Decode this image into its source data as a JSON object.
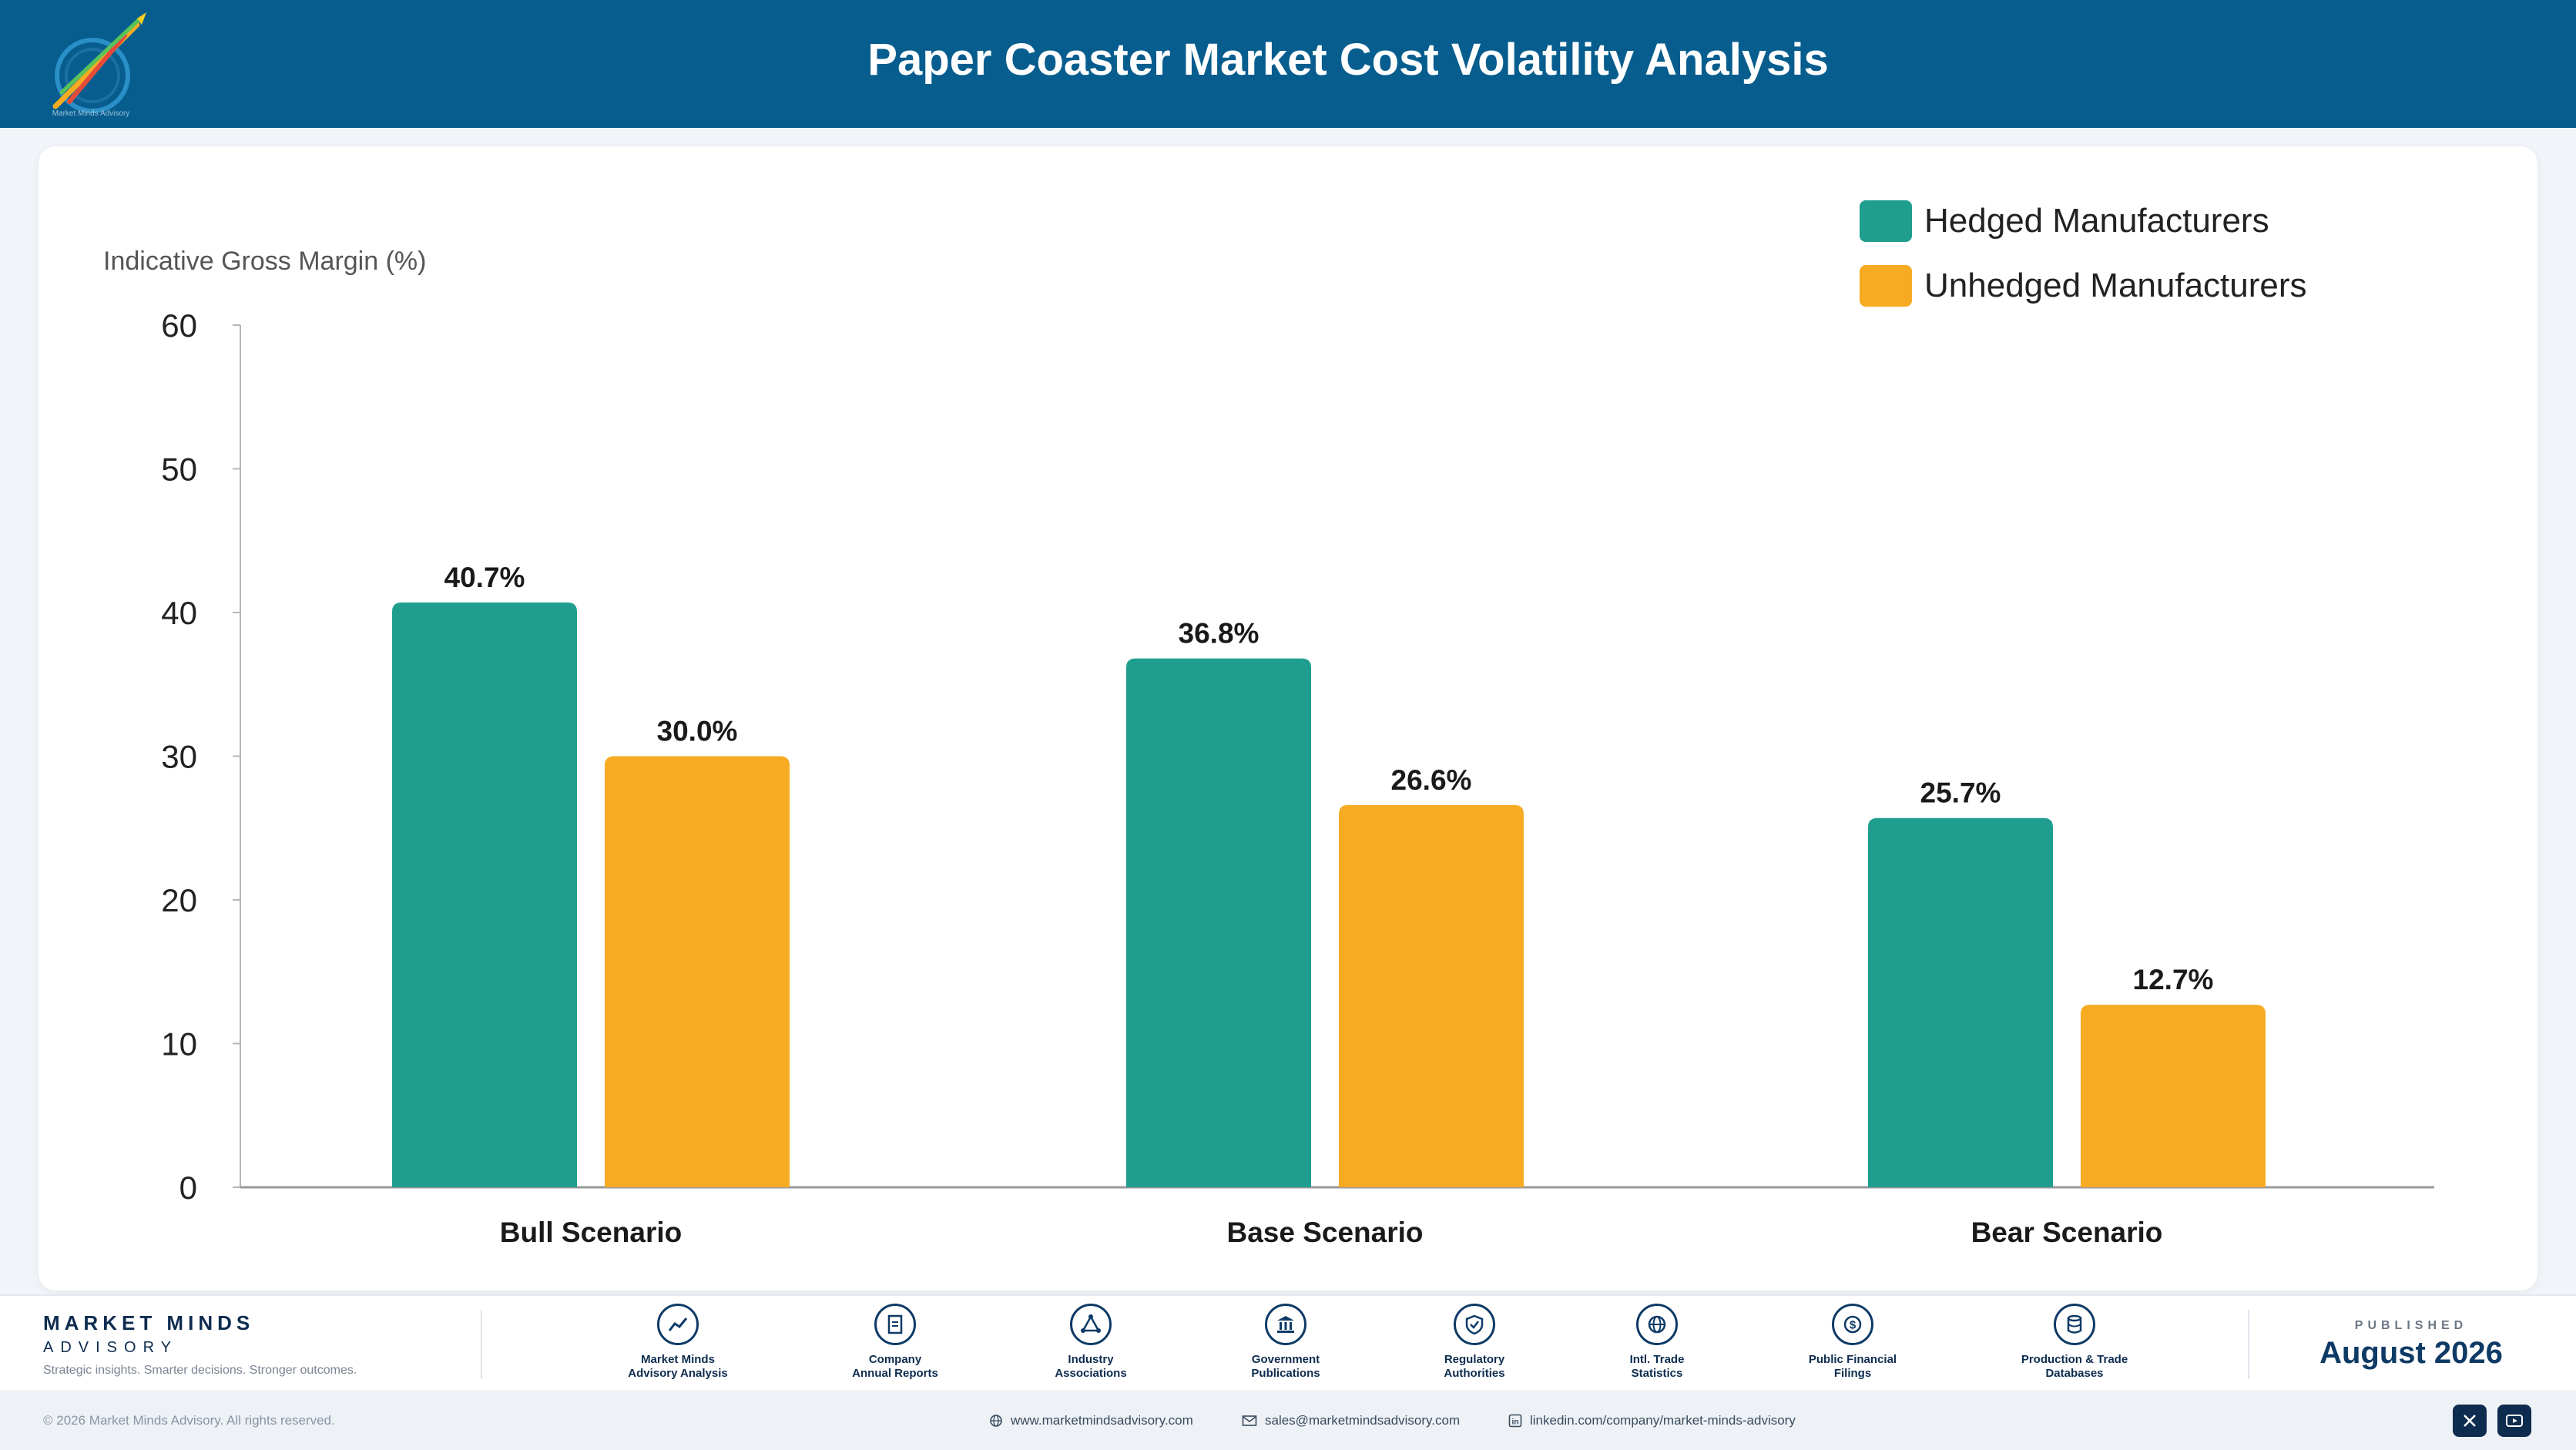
{
  "header": {
    "title": "Paper Coaster Market Cost Volatility Analysis",
    "logo_text": "Market Minds Advisory"
  },
  "chart_data": {
    "type": "bar",
    "ylabel": "Indicative Gross Margin (%)",
    "ylim": [
      0,
      60
    ],
    "yticks": [
      0,
      10,
      20,
      30,
      40,
      50,
      60
    ],
    "categories": [
      "Bull Scenario",
      "Base Scenario",
      "Bear Scenario"
    ],
    "series": [
      {
        "name": "Hedged Manufacturers",
        "values": [
          40.7,
          36.8,
          25.7
        ],
        "labels": [
          "40.7%",
          "36.8%",
          "25.7%"
        ],
        "color": "#1f9e8f"
      },
      {
        "name": "Unhedged Manufacturers",
        "values": [
          30.0,
          26.6,
          12.7
        ],
        "labels": [
          "30.0%",
          "26.6%",
          "12.7%"
        ],
        "color": "#f7ab22"
      }
    ],
    "legend": "top-right",
    "grid": false
  },
  "footer": {
    "brand_name": "MARKET MINDS",
    "brand_sub": "ADVISORY",
    "tagline": "Strategic insights. Smarter decisions. Stronger outcomes.",
    "sources": [
      {
        "label": "Market Minds\nAdvisory Analysis",
        "icon": "chart-line-icon"
      },
      {
        "label": "Company\nAnnual Reports",
        "icon": "document-icon"
      },
      {
        "label": "Industry\nAssociations",
        "icon": "network-icon"
      },
      {
        "label": "Government\nPublications",
        "icon": "government-building-icon"
      },
      {
        "label": "Regulatory\nAuthorities",
        "icon": "shield-check-icon"
      },
      {
        "label": "Intl. Trade\nStatistics",
        "icon": "globe-icon"
      },
      {
        "label": "Public Financial\nFilings",
        "icon": "dollar-coin-icon"
      },
      {
        "label": "Production & Trade\nDatabases",
        "icon": "database-icon"
      }
    ],
    "published_label": "PUBLISHED",
    "published_date": "August 2026"
  },
  "bottom": {
    "copyright": "© 2026 Market Minds Advisory. All rights reserved.",
    "website": "www.marketmindsadvisory.com",
    "email": "sales@marketmindsadvisory.com",
    "linkedin": "linkedin.com/company/market-minds-advisory"
  }
}
